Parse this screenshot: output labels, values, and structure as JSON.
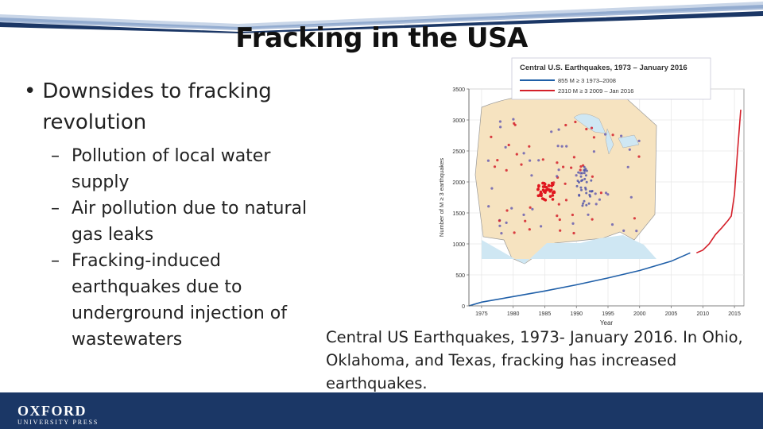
{
  "slide": {
    "title": "Fracking in the USA",
    "bullets": {
      "main": "Downsides to fracking revolution",
      "sub": [
        "Pollution of local water supply",
        "Air pollution due to natural gas leaks",
        "Fracking-induced earthquakes due to underground injection of wastewaters"
      ]
    },
    "caption": "Central US Earthquakes, 1973- January 2016. In Ohio, Oklahoma, and Texas, fracking has increased earthquakes.",
    "logo": {
      "top": "OXFORD",
      "bottom": "UNIVERSITY PRESS"
    },
    "colors": {
      "footer": "#1b3766",
      "series_blue": "#1f5fa8",
      "series_red": "#d4202a"
    }
  },
  "chart_data": {
    "type": "line",
    "title": "Central U.S. Earthquakes, 1973 – January 2016",
    "xlabel": "Year",
    "ylabel": "Number of M ≥ 3 earthquakes",
    "xlim": [
      1973,
      2016.5
    ],
    "ylim": [
      0,
      3500
    ],
    "xticks": [
      1975,
      1980,
      1985,
      1990,
      1995,
      2000,
      2005,
      2010,
      2015
    ],
    "yticks": [
      0,
      500,
      1000,
      1500,
      2000,
      2500,
      3000,
      3500
    ],
    "legend": "top",
    "series": [
      {
        "name": "855 M ≥ 3 1973–2008",
        "color": "#1f5fa8",
        "x": [
          1973,
          1975,
          1980,
          1985,
          1990,
          1995,
          2000,
          2005,
          2008
        ],
        "y": [
          0,
          60,
          150,
          240,
          340,
          450,
          570,
          720,
          855
        ]
      },
      {
        "name": "2310 M ≥ 3 2009 – Jan 2016",
        "color": "#d4202a",
        "x": [
          2009,
          2010,
          2011,
          2012,
          2013,
          2014,
          2014.5,
          2015,
          2015.5,
          2016
        ],
        "y": [
          855,
          900,
          1000,
          1150,
          1260,
          1380,
          1450,
          1800,
          2500,
          3165
        ]
      }
    ],
    "inset": "Map of the central United States showing M ≥ 3 earthquake locations"
  }
}
